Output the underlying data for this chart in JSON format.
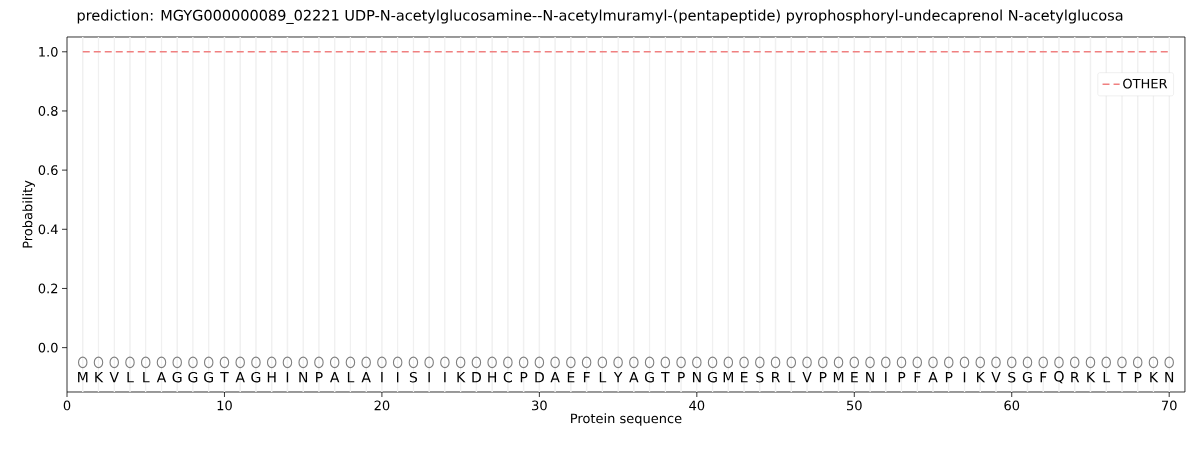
{
  "chart_data": {
    "type": "line",
    "title": "prediction: MGYG000000089_02221 UDP-N-acetylglucosamine--N-acetylmuramyl-(pentapeptide) pyrophosphoryl-undecaprenol N-acetylglucosa",
    "xlabel": "Protein sequence",
    "ylabel": "Probability",
    "series": [
      {
        "name": "OTHER",
        "color": "#f08080",
        "line_style": "dashed",
        "x": [
          1,
          70
        ],
        "values": [
          1,
          1
        ]
      },
      {
        "type": "scatter",
        "color": "#808080",
        "marker": "circle",
        "x": [
          1,
          2,
          3,
          4,
          5,
          6,
          7,
          8,
          9,
          10,
          11,
          12,
          13,
          14,
          15,
          16,
          17,
          18,
          19,
          20,
          21,
          22,
          23,
          24,
          25,
          26,
          27,
          28,
          29,
          30,
          31,
          32,
          33,
          34,
          35,
          36,
          37,
          38,
          39,
          40,
          41,
          42,
          43,
          44,
          45,
          46,
          47,
          48,
          49,
          50,
          51,
          52,
          53,
          54,
          55,
          56,
          57,
          58,
          59,
          60,
          61,
          62,
          63,
          64,
          65,
          66,
          67,
          68,
          69,
          70
        ],
        "values": [
          -0.05,
          -0.05,
          -0.05,
          -0.05,
          -0.05,
          -0.05,
          -0.05,
          -0.05,
          -0.05,
          -0.05,
          -0.05,
          -0.05,
          -0.05,
          -0.05,
          -0.05,
          -0.05,
          -0.05,
          -0.05,
          -0.05,
          -0.05,
          -0.05,
          -0.05,
          -0.05,
          -0.05,
          -0.05,
          -0.05,
          -0.05,
          -0.05,
          -0.05,
          -0.05,
          -0.05,
          -0.05,
          -0.05,
          -0.05,
          -0.05,
          -0.05,
          -0.05,
          -0.05,
          -0.05,
          -0.05,
          -0.05,
          -0.05,
          -0.05,
          -0.05,
          -0.05,
          -0.05,
          -0.05,
          -0.05,
          -0.05,
          -0.05,
          -0.05,
          -0.05,
          -0.05,
          -0.05,
          -0.05,
          -0.05,
          -0.05,
          -0.05,
          -0.05,
          -0.05,
          -0.05,
          -0.05,
          -0.05,
          -0.05,
          -0.05,
          -0.05,
          -0.05,
          -0.05,
          -0.05,
          -0.05
        ]
      }
    ],
    "xlim": [
      0,
      71
    ],
    "ylim": [
      -0.15,
      1.05
    ],
    "xticks": [
      0,
      10,
      20,
      30,
      40,
      50,
      60,
      70
    ],
    "yticks": [
      {
        "value": 0,
        "label": "0.0"
      },
      {
        "value": 0.2,
        "label": "0.2"
      },
      {
        "value": 0.4,
        "label": "0.4"
      },
      {
        "value": 0.6,
        "label": "0.6"
      },
      {
        "value": 0.8,
        "label": "0.8"
      },
      {
        "value": 1,
        "label": "1.0"
      }
    ],
    "legend": "top right",
    "ref_lines": [
      {
        "axis": "x",
        "value": 1,
        "color": "#f0f0f0"
      },
      {
        "axis": "x",
        "value": 2,
        "color": "#f0f0f0"
      },
      {
        "axis": "x",
        "value": 3,
        "color": "#f0f0f0"
      },
      {
        "axis": "x",
        "value": 4,
        "color": "#f0f0f0"
      },
      {
        "axis": "x",
        "value": 5,
        "color": "#f0f0f0"
      },
      {
        "axis": "x",
        "value": 6,
        "color": "#f0f0f0"
      },
      {
        "axis": "x",
        "value": 7,
        "color": "#f0f0f0"
      },
      {
        "axis": "x",
        "value": 8,
        "color": "#f0f0f0"
      },
      {
        "axis": "x",
        "value": 9,
        "color": "#f0f0f0"
      },
      {
        "axis": "x",
        "value": 10,
        "color": "#f0f0f0"
      },
      {
        "axis": "x",
        "value": 11,
        "color": "#f0f0f0"
      },
      {
        "axis": "x",
        "value": 12,
        "color": "#f0f0f0"
      },
      {
        "axis": "x",
        "value": 13,
        "color": "#f0f0f0"
      },
      {
        "axis": "x",
        "value": 14,
        "color": "#f0f0f0"
      },
      {
        "axis": "x",
        "value": 15,
        "color": "#f0f0f0"
      },
      {
        "axis": "x",
        "value": 16,
        "color": "#f0f0f0"
      },
      {
        "axis": "x",
        "value": 17,
        "color": "#f0f0f0"
      },
      {
        "axis": "x",
        "value": 18,
        "color": "#f0f0f0"
      },
      {
        "axis": "x",
        "value": 19,
        "color": "#f0f0f0"
      },
      {
        "axis": "x",
        "value": 20,
        "color": "#f0f0f0"
      },
      {
        "axis": "x",
        "value": 21,
        "color": "#f0f0f0"
      },
      {
        "axis": "x",
        "value": 22,
        "color": "#f0f0f0"
      },
      {
        "axis": "x",
        "value": 23,
        "color": "#f0f0f0"
      },
      {
        "axis": "x",
        "value": 24,
        "color": "#f0f0f0"
      },
      {
        "axis": "x",
        "value": 25,
        "color": "#f0f0f0"
      },
      {
        "axis": "x",
        "value": 26,
        "color": "#f0f0f0"
      },
      {
        "axis": "x",
        "value": 27,
        "color": "#f0f0f0"
      },
      {
        "axis": "x",
        "value": 28,
        "color": "#f0f0f0"
      },
      {
        "axis": "x",
        "value": 29,
        "color": "#f0f0f0"
      },
      {
        "axis": "x",
        "value": 30,
        "color": "#f0f0f0"
      },
      {
        "axis": "x",
        "value": 31,
        "color": "#f0f0f0"
      },
      {
        "axis": "x",
        "value": 32,
        "color": "#f0f0f0"
      },
      {
        "axis": "x",
        "value": 33,
        "color": "#f0f0f0"
      },
      {
        "axis": "x",
        "value": 34,
        "color": "#f0f0f0"
      },
      {
        "axis": "x",
        "value": 35,
        "color": "#f0f0f0"
      },
      {
        "axis": "x",
        "value": 36,
        "color": "#f0f0f0"
      },
      {
        "axis": "x",
        "value": 37,
        "color": "#f0f0f0"
      },
      {
        "axis": "x",
        "value": 38,
        "color": "#f0f0f0"
      },
      {
        "axis": "x",
        "value": 39,
        "color": "#f0f0f0"
      },
      {
        "axis": "x",
        "value": 40,
        "color": "#f0f0f0"
      },
      {
        "axis": "x",
        "value": 41,
        "color": "#f0f0f0"
      },
      {
        "axis": "x",
        "value": 42,
        "color": "#f0f0f0"
      },
      {
        "axis": "x",
        "value": 43,
        "color": "#f0f0f0"
      },
      {
        "axis": "x",
        "value": 44,
        "color": "#f0f0f0"
      },
      {
        "axis": "x",
        "value": 45,
        "color": "#f0f0f0"
      },
      {
        "axis": "x",
        "value": 46,
        "color": "#f0f0f0"
      },
      {
        "axis": "x",
        "value": 47,
        "color": "#f0f0f0"
      },
      {
        "axis": "x",
        "value": 48,
        "color": "#f0f0f0"
      },
      {
        "axis": "x",
        "value": 49,
        "color": "#f0f0f0"
      },
      {
        "axis": "x",
        "value": 50,
        "color": "#f0f0f0"
      },
      {
        "axis": "x",
        "value": 51,
        "color": "#f0f0f0"
      },
      {
        "axis": "x",
        "value": 52,
        "color": "#f0f0f0"
      },
      {
        "axis": "x",
        "value": 53,
        "color": "#f0f0f0"
      },
      {
        "axis": "x",
        "value": 54,
        "color": "#f0f0f0"
      },
      {
        "axis": "x",
        "value": 55,
        "color": "#f0f0f0"
      },
      {
        "axis": "x",
        "value": 56,
        "color": "#f0f0f0"
      },
      {
        "axis": "x",
        "value": 57,
        "color": "#f0f0f0"
      },
      {
        "axis": "x",
        "value": 58,
        "color": "#f0f0f0"
      },
      {
        "axis": "x",
        "value": 59,
        "color": "#f0f0f0"
      },
      {
        "axis": "x",
        "value": 60,
        "color": "#f0f0f0"
      },
      {
        "axis": "x",
        "value": 61,
        "color": "#f0f0f0"
      },
      {
        "axis": "x",
        "value": 62,
        "color": "#f0f0f0"
      },
      {
        "axis": "x",
        "value": 63,
        "color": "#f0f0f0"
      },
      {
        "axis": "x",
        "value": 64,
        "color": "#f0f0f0"
      },
      {
        "axis": "x",
        "value": 65,
        "color": "#f0f0f0"
      },
      {
        "axis": "x",
        "value": 66,
        "color": "#f0f0f0"
      },
      {
        "axis": "x",
        "value": 67,
        "color": "#f0f0f0"
      },
      {
        "axis": "x",
        "value": 68,
        "color": "#f0f0f0"
      },
      {
        "axis": "x",
        "value": 69,
        "color": "#f0f0f0"
      },
      {
        "axis": "x",
        "value": 70,
        "color": "#f0f0f0"
      }
    ],
    "annotations": [
      {
        "text": "M",
        "x": 1,
        "y": -0.1
      },
      {
        "text": "K",
        "x": 2,
        "y": -0.1
      },
      {
        "text": "V",
        "x": 3,
        "y": -0.1
      },
      {
        "text": "L",
        "x": 4,
        "y": -0.1
      },
      {
        "text": "L",
        "x": 5,
        "y": -0.1
      },
      {
        "text": "A",
        "x": 6,
        "y": -0.1
      },
      {
        "text": "G",
        "x": 7,
        "y": -0.1
      },
      {
        "text": "G",
        "x": 8,
        "y": -0.1
      },
      {
        "text": "G",
        "x": 9,
        "y": -0.1
      },
      {
        "text": "T",
        "x": 10,
        "y": -0.1
      },
      {
        "text": "A",
        "x": 11,
        "y": -0.1
      },
      {
        "text": "G",
        "x": 12,
        "y": -0.1
      },
      {
        "text": "H",
        "x": 13,
        "y": -0.1
      },
      {
        "text": "I",
        "x": 14,
        "y": -0.1
      },
      {
        "text": "N",
        "x": 15,
        "y": -0.1
      },
      {
        "text": "P",
        "x": 16,
        "y": -0.1
      },
      {
        "text": "A",
        "x": 17,
        "y": -0.1
      },
      {
        "text": "L",
        "x": 18,
        "y": -0.1
      },
      {
        "text": "A",
        "x": 19,
        "y": -0.1
      },
      {
        "text": "I",
        "x": 20,
        "y": -0.1
      },
      {
        "text": "I",
        "x": 21,
        "y": -0.1
      },
      {
        "text": "S",
        "x": 22,
        "y": -0.1
      },
      {
        "text": "I",
        "x": 23,
        "y": -0.1
      },
      {
        "text": "I",
        "x": 24,
        "y": -0.1
      },
      {
        "text": "K",
        "x": 25,
        "y": -0.1
      },
      {
        "text": "D",
        "x": 26,
        "y": -0.1
      },
      {
        "text": "H",
        "x": 27,
        "y": -0.1
      },
      {
        "text": "C",
        "x": 28,
        "y": -0.1
      },
      {
        "text": "P",
        "x": 29,
        "y": -0.1
      },
      {
        "text": "D",
        "x": 30,
        "y": -0.1
      },
      {
        "text": "A",
        "x": 31,
        "y": -0.1
      },
      {
        "text": "E",
        "x": 32,
        "y": -0.1
      },
      {
        "text": "F",
        "x": 33,
        "y": -0.1
      },
      {
        "text": "L",
        "x": 34,
        "y": -0.1
      },
      {
        "text": "Y",
        "x": 35,
        "y": -0.1
      },
      {
        "text": "A",
        "x": 36,
        "y": -0.1
      },
      {
        "text": "G",
        "x": 37,
        "y": -0.1
      },
      {
        "text": "T",
        "x": 38,
        "y": -0.1
      },
      {
        "text": "P",
        "x": 39,
        "y": -0.1
      },
      {
        "text": "N",
        "x": 40,
        "y": -0.1
      },
      {
        "text": "G",
        "x": 41,
        "y": -0.1
      },
      {
        "text": "M",
        "x": 42,
        "y": -0.1
      },
      {
        "text": "E",
        "x": 43,
        "y": -0.1
      },
      {
        "text": "S",
        "x": 44,
        "y": -0.1
      },
      {
        "text": "R",
        "x": 45,
        "y": -0.1
      },
      {
        "text": "L",
        "x": 46,
        "y": -0.1
      },
      {
        "text": "V",
        "x": 47,
        "y": -0.1
      },
      {
        "text": "P",
        "x": 48,
        "y": -0.1
      },
      {
        "text": "M",
        "x": 49,
        "y": -0.1
      },
      {
        "text": "E",
        "x": 50,
        "y": -0.1
      },
      {
        "text": "N",
        "x": 51,
        "y": -0.1
      },
      {
        "text": "I",
        "x": 52,
        "y": -0.1
      },
      {
        "text": "P",
        "x": 53,
        "y": -0.1
      },
      {
        "text": "F",
        "x": 54,
        "y": -0.1
      },
      {
        "text": "A",
        "x": 55,
        "y": -0.1
      },
      {
        "text": "P",
        "x": 56,
        "y": -0.1
      },
      {
        "text": "I",
        "x": 57,
        "y": -0.1
      },
      {
        "text": "K",
        "x": 58,
        "y": -0.1
      },
      {
        "text": "V",
        "x": 59,
        "y": -0.1
      },
      {
        "text": "S",
        "x": 60,
        "y": -0.1
      },
      {
        "text": "G",
        "x": 61,
        "y": -0.1
      },
      {
        "text": "F",
        "x": 62,
        "y": -0.1
      },
      {
        "text": "Q",
        "x": 63,
        "y": -0.1
      },
      {
        "text": "R",
        "x": 64,
        "y": -0.1
      },
      {
        "text": "K",
        "x": 65,
        "y": -0.1
      },
      {
        "text": "L",
        "x": 66,
        "y": -0.1
      },
      {
        "text": "T",
        "x": 67,
        "y": -0.1
      },
      {
        "text": "P",
        "x": 68,
        "y": -0.1
      },
      {
        "text": "K",
        "x": 69,
        "y": -0.1
      },
      {
        "text": "N",
        "x": 70,
        "y": -0.1
      }
    ]
  }
}
